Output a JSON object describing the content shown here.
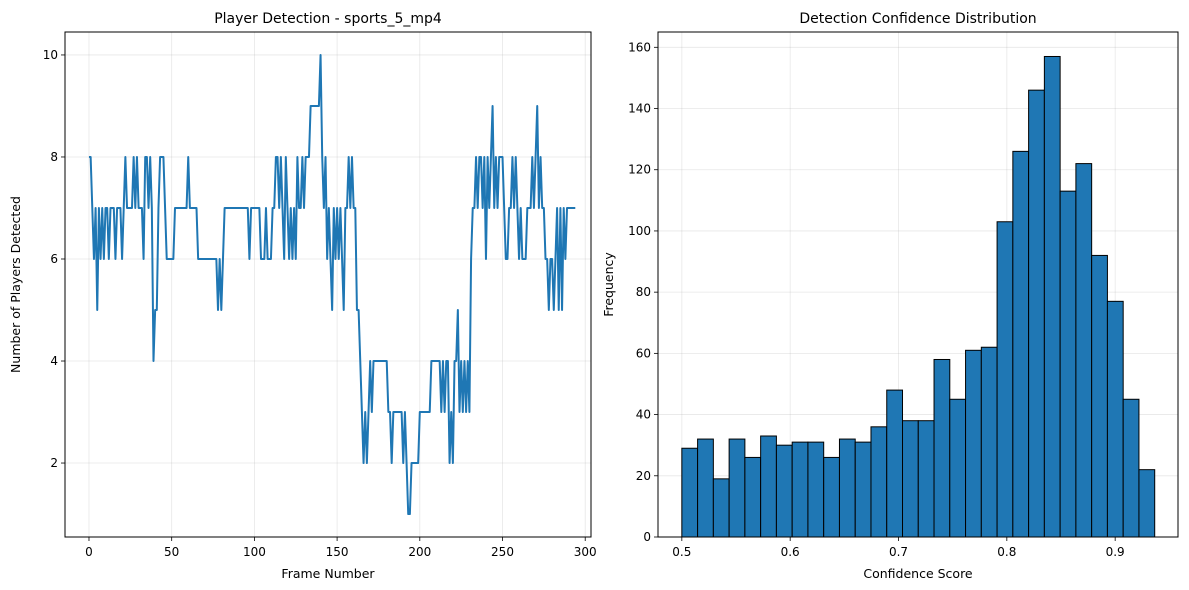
{
  "chart_data": [
    {
      "type": "line",
      "title": "Player Detection - sports_5_mp4",
      "xlabel": "Frame Number",
      "ylabel": "Number of Players Detected",
      "xlim": [
        -14.5,
        303.5
      ],
      "ylim": [
        0.55,
        10.45
      ],
      "xticks": [
        0,
        50,
        100,
        150,
        200,
        250,
        300
      ],
      "yticks": [
        2,
        4,
        6,
        8,
        10
      ],
      "grid": true,
      "line_color": "#1f77b4",
      "x_start": 0,
      "x_step": 1,
      "values": [
        8,
        8,
        7,
        6,
        7,
        5,
        7,
        6,
        7,
        6,
        7,
        7,
        6,
        7,
        7,
        7,
        6,
        7,
        7,
        7,
        6,
        7,
        8,
        7,
        7,
        7,
        7,
        8,
        7,
        8,
        7,
        7,
        7,
        6,
        8,
        8,
        7,
        8,
        7,
        4,
        5,
        5,
        7,
        8,
        8,
        8,
        7,
        6,
        6,
        6,
        6,
        6,
        7,
        7,
        7,
        7,
        7,
        7,
        7,
        7,
        8,
        7,
        7,
        7,
        7,
        7,
        6,
        6,
        6,
        6,
        6,
        6,
        6,
        6,
        6,
        6,
        6,
        6,
        5,
        6,
        5,
        6,
        7,
        7,
        7,
        7,
        7,
        7,
        7,
        7,
        7,
        7,
        7,
        7,
        7,
        7,
        7,
        6,
        7,
        7,
        7,
        7,
        7,
        7,
        6,
        6,
        6,
        7,
        6,
        6,
        6,
        7,
        7,
        8,
        8,
        7,
        8,
        7,
        6,
        8,
        7,
        6,
        7,
        6,
        7,
        6,
        8,
        7,
        7,
        8,
        7,
        8,
        8,
        8,
        9,
        9,
        9,
        9,
        9,
        9,
        10,
        8,
        7,
        8,
        6,
        7,
        6,
        5,
        7,
        6,
        7,
        6,
        7,
        6,
        5,
        7,
        7,
        8,
        7,
        8,
        7,
        7,
        5,
        5,
        4,
        3,
        2,
        3,
        2,
        3,
        4,
        3,
        4,
        4,
        4,
        4,
        4,
        4,
        4,
        4,
        4,
        3,
        3,
        2,
        3,
        3,
        3,
        3,
        3,
        3,
        2,
        3,
        2,
        1,
        1,
        2,
        2,
        2,
        2,
        2,
        3,
        3,
        3,
        3,
        3,
        3,
        3,
        4,
        4,
        4,
        4,
        4,
        4,
        3,
        4,
        3,
        4,
        4,
        2,
        3,
        2,
        4,
        4,
        5,
        3,
        4,
        3,
        4,
        3,
        4,
        3,
        6,
        7,
        7,
        8,
        7,
        8,
        8,
        7,
        8,
        6,
        8,
        7,
        8,
        9,
        7,
        8,
        7,
        8,
        8,
        8,
        7,
        6,
        6,
        7,
        7,
        8,
        7,
        8,
        7,
        6,
        7,
        6,
        6,
        6,
        7,
        7,
        7,
        8,
        7,
        8,
        9,
        7,
        8,
        7,
        7,
        6,
        6,
        5,
        6,
        6,
        5,
        6,
        7,
        5,
        7,
        5,
        7,
        6,
        7,
        7,
        7,
        7,
        7,
        7
      ]
    },
    {
      "type": "bar",
      "title": "Detection Confidence Distribution",
      "xlabel": "Confidence Score",
      "ylabel": "Frequency",
      "xlim": [
        0.478,
        0.958
      ],
      "ylim": [
        0,
        165
      ],
      "xticks": [
        0.5,
        0.6,
        0.7,
        0.8,
        0.9
      ],
      "yticks": [
        0,
        20,
        40,
        60,
        80,
        100,
        120,
        140,
        160
      ],
      "grid": true,
      "bar_color": "#1f77b4",
      "edge_color": "#000000",
      "bin_start": 0.5,
      "bin_width": 0.01455,
      "values": [
        29,
        32,
        19,
        32,
        26,
        33,
        30,
        31,
        31,
        26,
        32,
        31,
        36,
        48,
        38,
        38,
        58,
        45,
        61,
        62,
        103,
        126,
        146,
        157,
        113,
        122,
        92,
        77,
        45,
        22
      ]
    }
  ]
}
